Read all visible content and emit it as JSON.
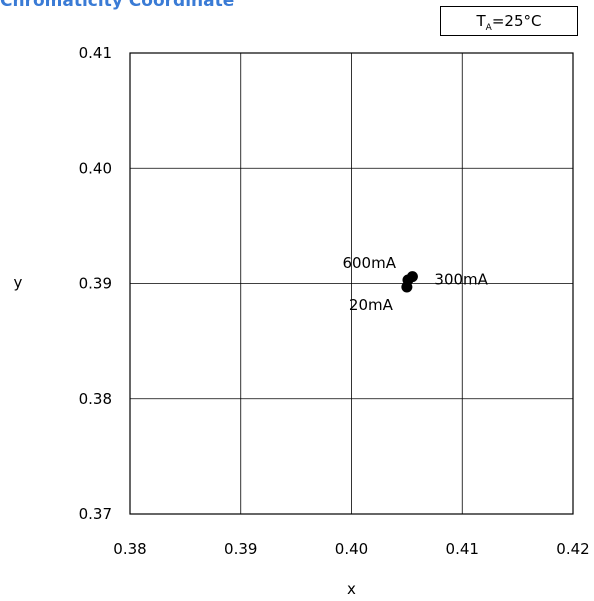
{
  "chart_data": {
    "type": "scatter",
    "title": "Chromaticity Coordinate",
    "condition": {
      "symbol": "T",
      "subscript": "A",
      "value": "=25°C"
    },
    "xlabel": "x",
    "ylabel": "y",
    "xlim": [
      0.38,
      0.42
    ],
    "ylim": [
      0.37,
      0.41
    ],
    "x_ticks": [
      "0.38",
      "0.39",
      "0.40",
      "0.41",
      "0.42"
    ],
    "y_ticks": [
      "0.37",
      "0.38",
      "0.39",
      "0.40",
      "0.41"
    ],
    "grid": true,
    "points": [
      {
        "label": "20mA",
        "x": 0.405,
        "y": 0.3897
      },
      {
        "label": "300mA",
        "x": 0.4055,
        "y": 0.3906
      },
      {
        "label": "600mA",
        "x": 0.4051,
        "y": 0.3903
      }
    ]
  }
}
